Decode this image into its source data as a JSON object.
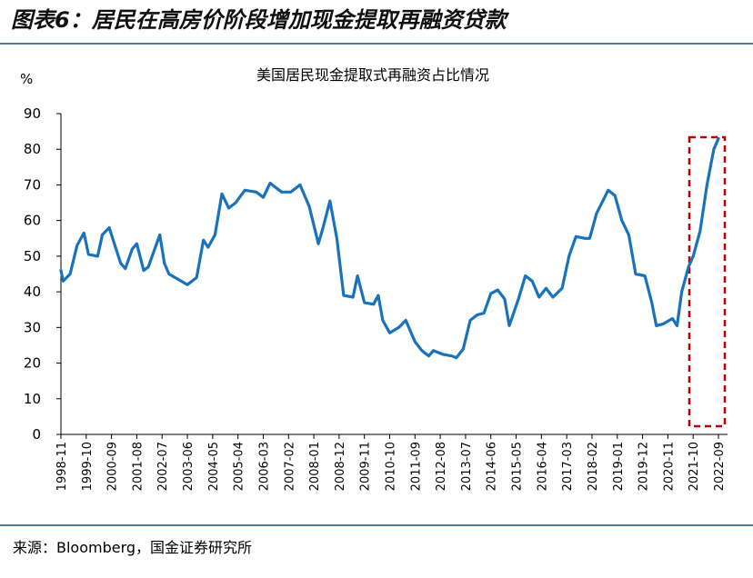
{
  "chart_data": {
    "type": "line",
    "title": "图表6：居民在高房价阶段增加现金提取再融资贷款",
    "subtitle": "美国居民现金提取式再融资占比情况",
    "y_label": "%",
    "source": "来源：Bloomberg，国金证券研究所",
    "x": [
      "1998-11",
      "1998-12",
      "1999-03",
      "1999-06",
      "1999-09",
      "1999-11",
      "2000-03",
      "2000-05",
      "2000-08",
      "2000-10",
      "2001-01",
      "2001-03",
      "2001-06",
      "2001-08",
      "2001-11",
      "2002-01",
      "2002-06",
      "2002-08",
      "2002-10",
      "2003-02",
      "2003-06",
      "2003-10",
      "2004-01",
      "2004-03",
      "2004-06",
      "2004-09",
      "2004-12",
      "2005-03",
      "2005-07",
      "2005-12",
      "2006-03",
      "2006-06",
      "2006-11",
      "2007-03",
      "2007-07",
      "2007-11",
      "2008-03",
      "2008-05",
      "2008-08",
      "2008-11",
      "2009-02",
      "2009-06",
      "2009-08",
      "2009-11",
      "2010-03",
      "2010-05",
      "2010-07",
      "2010-10",
      "2011-02",
      "2011-05",
      "2011-09",
      "2011-12",
      "2012-03",
      "2012-05",
      "2012-09",
      "2013-01",
      "2013-03",
      "2013-06",
      "2013-09",
      "2013-12",
      "2014-03",
      "2014-06",
      "2014-09",
      "2014-12",
      "2015-02",
      "2015-06",
      "2015-09",
      "2015-12",
      "2016-03",
      "2016-06",
      "2016-09",
      "2017-01",
      "2017-04",
      "2017-07",
      "2017-11",
      "2018-01",
      "2018-04",
      "2018-09",
      "2018-12",
      "2019-03",
      "2019-06",
      "2019-09",
      "2020-01",
      "2020-04",
      "2020-06",
      "2020-09",
      "2021-01",
      "2021-03",
      "2021-05",
      "2021-08",
      "2021-10",
      "2022-01",
      "2022-04",
      "2022-07",
      "2022-09"
    ],
    "series": [
      {
        "name": "美国居民现金提取式再融资占比",
        "color": "#1a72bb",
        "values": [
          46,
          43,
          45,
          53,
          56.5,
          50.5,
          50,
          56,
          58,
          54,
          48,
          46.5,
          52,
          53.5,
          46,
          47,
          56,
          48,
          45,
          43.5,
          42,
          44,
          54.5,
          52.5,
          56,
          67.5,
          63.5,
          65,
          68.5,
          68,
          66.5,
          70.5,
          68,
          68,
          70,
          64,
          53.5,
          58,
          65.5,
          55,
          39,
          38.5,
          44.5,
          37,
          36.5,
          39,
          32,
          28.5,
          30,
          32,
          26,
          23.5,
          22,
          23.5,
          22.5,
          22,
          21.5,
          24,
          32,
          33.5,
          34,
          39.5,
          40.5,
          38,
          30.5,
          38,
          44.5,
          43,
          38.5,
          41,
          38.5,
          41,
          50,
          55.5,
          55,
          55,
          62,
          68.5,
          67,
          60,
          56,
          45,
          44.5,
          37,
          30.5,
          31,
          32.5,
          30.5,
          40,
          47,
          50,
          57,
          70,
          80,
          83
        ]
      }
    ],
    "xlim": [
      "1998-11",
      "2022-09"
    ],
    "xticks": [
      "1998-11",
      "1999-10",
      "2000-09",
      "2001-08",
      "2002-07",
      "2003-06",
      "2004-05",
      "2005-04",
      "2006-03",
      "2007-02",
      "2008-01",
      "2008-12",
      "2009-11",
      "2010-10",
      "2011-09",
      "2012-08",
      "2013-07",
      "2014-06",
      "2015-05",
      "2016-04",
      "2017-03",
      "2018-02",
      "2019-01",
      "2019-12",
      "2020-11",
      "2021-10",
      "2022-09"
    ],
    "ylim": [
      0,
      90
    ],
    "yticks": [
      0,
      10,
      20,
      30,
      40,
      50,
      60,
      70,
      80,
      90
    ]
  }
}
